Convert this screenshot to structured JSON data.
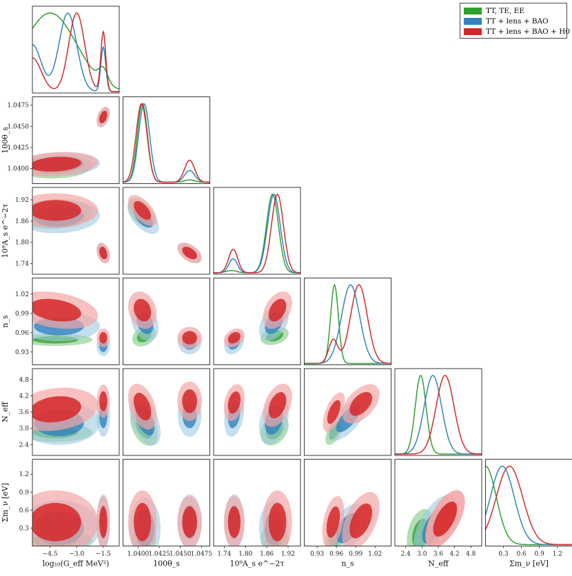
{
  "chart_data": {
    "type": "corner",
    "parameters": [
      {
        "key": "logG",
        "label": "log10(Geff MeV^2)",
        "range": [
          -5.5,
          -0.6
        ],
        "ticks": [
          -4.5,
          -3.0,
          -1.5
        ],
        "tick_labels": [
          "−4.5",
          "−3.0",
          "−1.5"
        ]
      },
      {
        "key": "theta",
        "label": "100θs",
        "range": [
          1.0382,
          1.0485
        ],
        "ticks": [
          1.04,
          1.0425,
          1.045,
          1.0475
        ],
        "tick_labels": [
          "1.0400",
          "1.0425",
          "1.0450",
          "1.0475"
        ]
      },
      {
        "key": "As",
        "label": "10^9 As e^−2τ",
        "range": [
          1.71,
          1.955
        ],
        "ticks": [
          1.74,
          1.8,
          1.86,
          1.92
        ],
        "tick_labels": [
          "1.74",
          "1.80",
          "1.86",
          "1.92"
        ]
      },
      {
        "key": "ns",
        "label": "ns",
        "range": [
          0.91,
          1.045
        ],
        "ticks": [
          0.93,
          0.96,
          0.99,
          1.02
        ],
        "tick_labels": [
          "0.93",
          "0.96",
          "0.99",
          "1.02"
        ]
      },
      {
        "key": "Neff",
        "label": "Neff",
        "range": [
          2.0,
          5.2
        ],
        "ticks": [
          2.4,
          3.0,
          3.6,
          4.2,
          4.8
        ],
        "tick_labels": [
          "2.4",
          "3.0",
          "3.6",
          "4.2",
          "4.8"
        ]
      },
      {
        "key": "mnu",
        "label": "Σmν [eV]",
        "range": [
          0,
          1.45
        ],
        "ticks": [
          0.3,
          0.6,
          0.9,
          1.2
        ],
        "tick_labels": [
          "0.3",
          "0.6",
          "0.9",
          "1.2"
        ]
      }
    ],
    "series": [
      {
        "name": "TT, TE, EE",
        "color": "#2ca02c",
        "marginals": {
          "logG": {
            "peaks": [
              [
                -4.5,
                1.5,
                1.0
              ],
              [
                -1.5,
                0.25,
                0.18
              ]
            ]
          },
          "theta": {
            "peaks": [
              [
                1.0405,
                0.0006,
                1.0
              ],
              [
                1.0461,
                0.0006,
                0.03
              ]
            ]
          },
          "As": {
            "peaks": [
              [
                1.876,
                0.017,
                1.0
              ],
              [
                1.76,
                0.015,
                0.03
              ]
            ]
          },
          "ns": {
            "peaks": [
              [
                0.957,
                0.006,
                1.0
              ]
            ]
          },
          "Neff": {
            "peaks": [
              [
                2.95,
                0.2,
                1.0
              ]
            ]
          },
          "mnu": {
            "peaks": [
              [
                0.0,
                0.18,
                1.0
              ]
            ]
          }
        }
      },
      {
        "name": "TT + lens + BAO",
        "color": "#3182bd",
        "marginals": {
          "logG": {
            "peaks": [
              [
                -5.5,
                0.5,
                0.58
              ],
              [
                -3.5,
                0.5,
                0.97
              ],
              [
                -1.5,
                0.14,
                0.55
              ]
            ]
          },
          "theta": {
            "peaks": [
              [
                1.0407,
                0.00065,
                1.0
              ],
              [
                1.0461,
                0.0006,
                0.15
              ]
            ]
          },
          "As": {
            "peaks": [
              [
                1.88,
                0.018,
                1.0
              ],
              [
                1.765,
                0.012,
                0.18
              ]
            ]
          },
          "ns": {
            "peaks": [
              [
                0.982,
                0.014,
                1.0
              ]
            ]
          },
          "Neff": {
            "peaks": [
              [
                3.4,
                0.32,
                1.0
              ]
            ]
          },
          "mnu": {
            "peaks": [
              [
                0.28,
                0.2,
                1.0
              ]
            ]
          }
        }
      },
      {
        "name": "TT + lens + BAO + H0",
        "color": "#d62728",
        "marginals": {
          "logG": {
            "peaks": [
              [
                -5.5,
                0.5,
                0.43
              ],
              [
                -3.0,
                0.45,
                1.0
              ],
              [
                -1.5,
                0.14,
                0.76
              ]
            ]
          },
          "theta": {
            "peaks": [
              [
                1.0404,
                0.00065,
                1.0
              ],
              [
                1.0461,
                0.0006,
                0.28
              ]
            ]
          },
          "As": {
            "peaks": [
              [
                1.89,
                0.017,
                1.0
              ],
              [
                1.765,
                0.013,
                0.3
              ]
            ]
          },
          "ns": {
            "peaks": [
              [
                0.995,
                0.013,
                1.0
              ],
              [
                0.955,
                0.007,
                0.3
              ]
            ]
          },
          "Neff": {
            "peaks": [
              [
                3.85,
                0.33,
                1.0
              ]
            ]
          },
          "mnu": {
            "peaks": [
              [
                0.4,
                0.22,
                1.0
              ]
            ]
          }
        }
      }
    ],
    "legend": {
      "placement": "top-right",
      "entries": [
        "TT, TE, EE",
        "TT + lens + BAO",
        "TT + lens + BAO + H0"
      ]
    },
    "axis_labels": {
      "logG": "log₁₀(G_eff MeV²)",
      "theta": "100θ_s",
      "As": "10⁹A_s e^−2τ",
      "ns": "n_s",
      "Neff": "N_eff",
      "mnu": "Σm_ν [eV]"
    }
  }
}
